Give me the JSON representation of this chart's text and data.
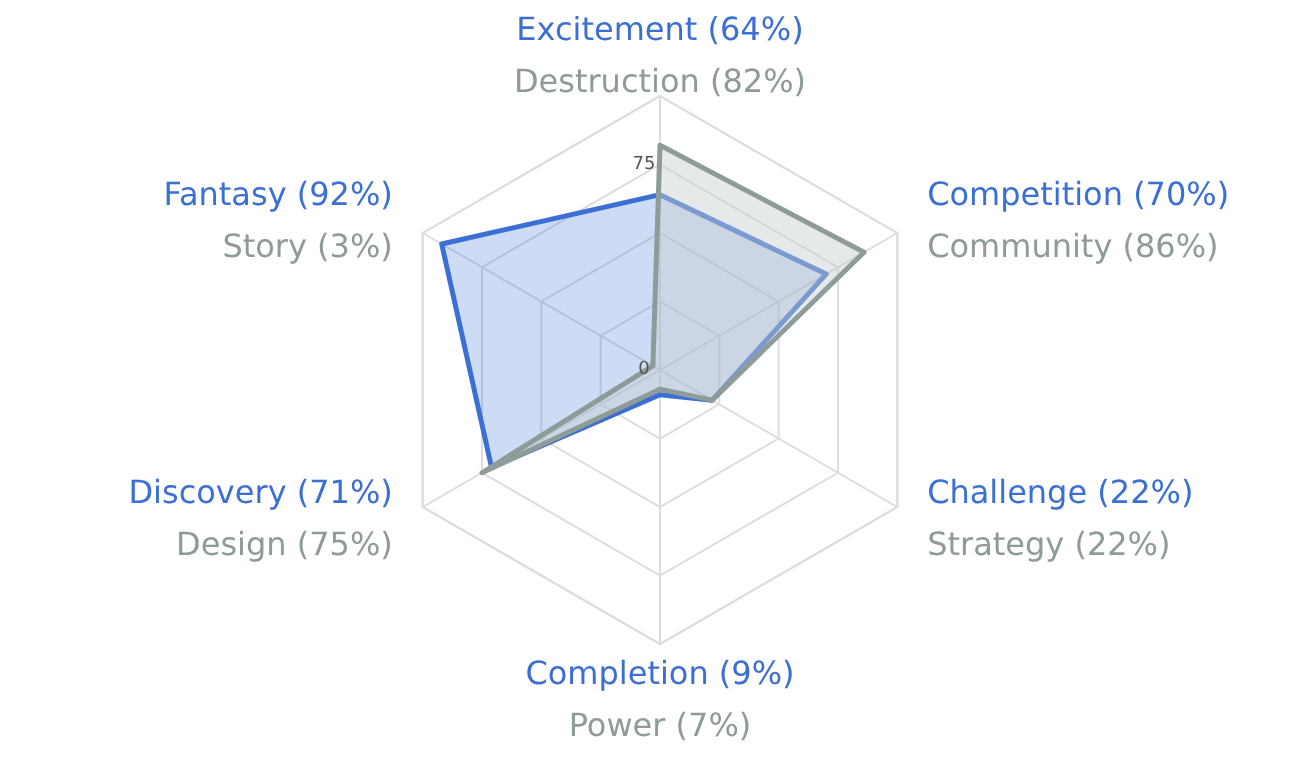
{
  "chart_data": {
    "type": "radar",
    "categories": [
      "Excitement (64%)",
      "Competition (70%)",
      "Challenge (22%)",
      "Completion (9%)",
      "Discovery (71%)",
      "Fantasy (92%)"
    ],
    "series": [
      {
        "color": "#3b6fd4",
        "values": [
          64,
          70,
          22,
          9,
          71,
          92
        ]
      },
      {
        "color": "#8d9b99",
        "values": [
          82,
          86,
          22,
          7,
          75,
          3
        ]
      }
    ],
    "ylim": [
      0,
      100
    ],
    "yticks": [
      0,
      75
    ],
    "grid": true,
    "annotations": [
      "Destruction (82%)",
      "Community (86%)",
      "Strategy (22%)",
      "Power (7%)",
      "Design (75%)",
      "Story (3%)"
    ]
  }
}
